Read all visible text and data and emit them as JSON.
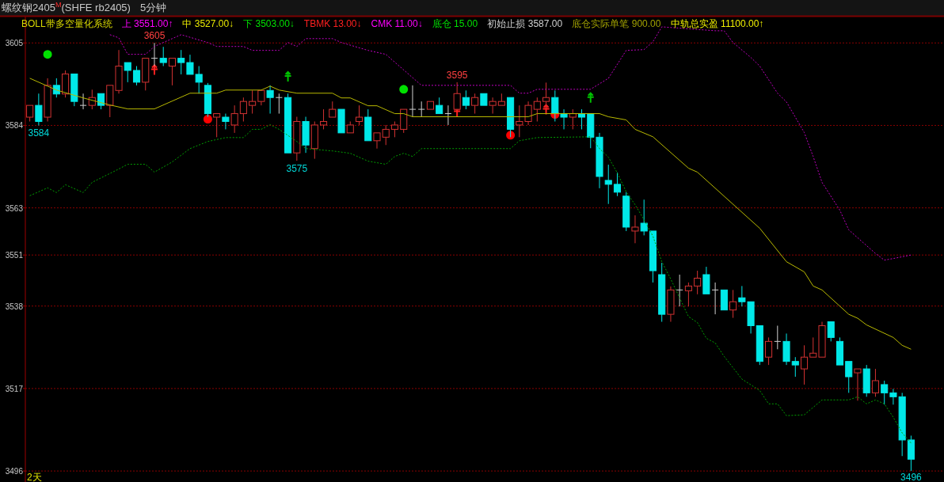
{
  "chart_data": {
    "type": "candlestick",
    "title": "螺纹钢2405$^{M}$(SHFE rb2405)",
    "subtitle": "5分钟",
    "xlabel": "2天",
    "categories": [
      null,
      null,
      null,
      null,
      null,
      null,
      null,
      null,
      null,
      null,
      null,
      null,
      null,
      null,
      null,
      null,
      null,
      null,
      null,
      null,
      null,
      null,
      null,
      null,
      null,
      null,
      null,
      null,
      null,
      null,
      null,
      null,
      null,
      null,
      null,
      null,
      null,
      null,
      null,
      null,
      null,
      null,
      null,
      null,
      null,
      null,
      null,
      null,
      null,
      null,
      null,
      null,
      null,
      null,
      null,
      null,
      null,
      null,
      null,
      null,
      null,
      null,
      null,
      null,
      null,
      null,
      null,
      null,
      null,
      null,
      null,
      null,
      null,
      null,
      null,
      null,
      null,
      null,
      null,
      null,
      null,
      null,
      null,
      null,
      null,
      null,
      null,
      null,
      null,
      null,
      null,
      null,
      null,
      null,
      null,
      null,
      null,
      null,
      null,
      null
    ],
    "ohlc": [
      [
        3586.1,
        3589.1,
        3585.0,
        3589.1
      ],
      [
        3589.1,
        3592.1,
        3584,
        3585.0
      ],
      [
        3586.1,
        3596.0,
        3585.0,
        3594.2
      ],
      [
        3594.2,
        3596.0,
        3591.1,
        3592.0
      ],
      [
        3592.0,
        3598.0,
        3591.1,
        3597.1
      ],
      [
        3597.1,
        3597.1,
        3588.9,
        3590.1
      ],
      [
        3589.1,
        3592.1,
        3588.1,
        3589.1
      ],
      [
        3589.1,
        3593.1,
        3588.1,
        3591.1
      ],
      [
        3592.1,
        3592.1,
        3588.1,
        3589.1
      ],
      [
        3589.1,
        3594.2,
        3586.1,
        3594.2
      ],
      [
        3592.9,
        3603.2,
        3592.1,
        3599.1
      ],
      [
        3600.0,
        3600.0,
        3595.0,
        3598.0
      ],
      [
        3598.0,
        3599.1,
        3594.2,
        3595.0
      ],
      [
        3595.0,
        3601.1,
        3592.9,
        3601.1
      ],
      [
        3601.1,
        3605,
        3599.1,
        3601.1
      ],
      [
        3601.1,
        3604.0,
        3599.1,
        3600.0
      ],
      [
        3599.1,
        3601.1,
        3594.2,
        3601.1
      ],
      [
        3601.1,
        3603.2,
        3597.0,
        3600.0
      ],
      [
        3600.0,
        3602.0,
        3597.0,
        3597.0
      ],
      [
        3597.0,
        3599.1,
        3592.1,
        3595.0
      ],
      [
        3594.2,
        3594.8,
        3586.2,
        3587.0
      ],
      [
        3586.1,
        3587.0,
        3581.0,
        3587.0
      ],
      [
        3586.1,
        3587.0,
        3583.0,
        3585.0
      ],
      [
        3584.1,
        3589.1,
        3582.1,
        3587.0
      ],
      [
        3587.0,
        3591.1,
        3585.0,
        3590.1
      ],
      [
        3589.1,
        3592.9,
        3587.0,
        3590.1
      ],
      [
        3590.1,
        3592.9,
        3589.1,
        3592.9
      ],
      [
        3592.9,
        3594.2,
        3587.0,
        3591.1
      ],
      [
        3591.1,
        3592.1,
        3587.0,
        3591.1
      ],
      [
        3591.1,
        3592.1,
        3577.0,
        3577.0
      ],
      [
        3577.0,
        3586.2,
        3575,
        3585.0
      ],
      [
        3585.0,
        3586.2,
        3577.0,
        3579.0
      ],
      [
        3578.1,
        3585.0,
        3575.5,
        3584.1
      ],
      [
        3584.1,
        3588.1,
        3583.0,
        3585.0
      ],
      [
        3586.1,
        3590.1,
        3586.1,
        3588.1
      ],
      [
        3588.1,
        3588.1,
        3582.1,
        3582.1
      ],
      [
        3582.1,
        3585.0,
        3582.1,
        3584.1
      ],
      [
        3585.0,
        3589.1,
        3584.1,
        3586.1
      ],
      [
        3586.1,
        3588.1,
        3580.1,
        3580.1
      ],
      [
        3580.1,
        3582.1,
        3578.1,
        3582.1
      ],
      [
        3581.0,
        3584.1,
        3579.0,
        3583.0
      ],
      [
        3583.0,
        3585.0,
        3581.0,
        3584.1
      ],
      [
        3583.0,
        3588.1,
        3582.1,
        3588.1
      ],
      [
        3588.1,
        3594.2,
        3586.1,
        3588.1
      ],
      [
        3588.1,
        3590.1,
        3586.1,
        3588.1
      ],
      [
        3588.1,
        3590.1,
        3588.1,
        3590.1
      ],
      [
        3589.1,
        3591.1,
        3587.0,
        3587.0
      ],
      [
        3587.0,
        3589.1,
        3584.1,
        3587.0
      ],
      [
        3588.1,
        3595,
        3588.1,
        3592.1
      ],
      [
        3591.1,
        3592.9,
        3588.1,
        3589.1
      ],
      [
        3589.1,
        3592.1,
        3587.0,
        3591.1
      ],
      [
        3592.1,
        3592.1,
        3589.1,
        3589.1
      ],
      [
        3589.1,
        3591.1,
        3587.0,
        3590.1
      ],
      [
        3589.1,
        3592.1,
        3589.1,
        3590.1
      ],
      [
        3591.1,
        3591.1,
        3581.0,
        3583.0
      ],
      [
        3584.1,
        3589.1,
        3581.0,
        3585.0
      ],
      [
        3585.0,
        3590.1,
        3584.1,
        3589.1
      ],
      [
        3588.1,
        3591.1,
        3585.0,
        3590.1
      ],
      [
        3590.1,
        3594.9,
        3588.1,
        3591.1
      ],
      [
        3591.1,
        3592.9,
        3585.0,
        3587.0
      ],
      [
        3587.0,
        3588.1,
        3583.0,
        3586.1
      ],
      [
        3586.1,
        3588.1,
        3583.0,
        3587.0
      ],
      [
        3587.0,
        3588.1,
        3583.0,
        3586.1
      ],
      [
        3587.0,
        3587.0,
        3578.2,
        3581.0
      ],
      [
        3581.0,
        3582.1,
        3568.0,
        3571.0
      ],
      [
        3570.0,
        3574.0,
        3564.0,
        3569.0
      ],
      [
        3569.0,
        3572.0,
        3566.0,
        3567.0
      ],
      [
        3566.0,
        3567.0,
        3557.1,
        3558.1
      ],
      [
        3557.1,
        3561.1,
        3554.0,
        3558.1
      ],
      [
        3559.1,
        3565.1,
        3556.0,
        3557.1
      ],
      [
        3557.1,
        3557.1,
        3544.0,
        3547.0
      ],
      [
        3546.0,
        3549.0,
        3534.0,
        3535.9
      ],
      [
        3535.9,
        3543.0,
        3534.0,
        3542.1
      ],
      [
        3542.1,
        3546.0,
        3537.9,
        3542.1
      ],
      [
        3541.9,
        3544.0,
        3537.9,
        3543.1
      ],
      [
        3543.1,
        3547.0,
        3541.0,
        3545.1
      ],
      [
        3546.0,
        3548.0,
        3541.1,
        3541.1
      ],
      [
        3542.1,
        3544.0,
        3535.9,
        3542.1
      ],
      [
        3542.1,
        3542.1,
        3537.0,
        3537.0
      ],
      [
        3537.0,
        3542.1,
        3535.0,
        3539.1
      ],
      [
        3540.1,
        3543.1,
        3537.9,
        3539.1
      ],
      [
        3539.1,
        3539.1,
        3531.0,
        3533.0
      ],
      [
        3533.0,
        3533.0,
        3523.0,
        3523.9
      ],
      [
        3525.0,
        3530.0,
        3523.0,
        3529.0
      ],
      [
        3529.0,
        3533.0,
        3527.0,
        3529.0
      ],
      [
        3529.0,
        3531.0,
        3523.0,
        3523.9
      ],
      [
        3523.9,
        3525.0,
        3520.0,
        3523.0
      ],
      [
        3522.0,
        3528.0,
        3518.0,
        3525.0
      ],
      [
        3525.0,
        3530.0,
        3525.0,
        3526.0
      ],
      [
        3525.0,
        3534.0,
        3525.0,
        3533.0
      ],
      [
        3534.0,
        3534.0,
        3529.0,
        3530.0
      ],
      [
        3529.0,
        3530.0,
        3523.0,
        3523.0
      ],
      [
        3523.9,
        3523.9,
        3515.9,
        3520.0
      ],
      [
        3521.0,
        3522.0,
        3513.9,
        3522.0
      ],
      [
        3522.0,
        3523.0,
        3514.9,
        3515.9
      ],
      [
        3515.9,
        3522.0,
        3514.9,
        3519.0
      ],
      [
        3518.0,
        3519.0,
        3512.9,
        3515.9
      ],
      [
        3515.9,
        3516.9,
        3512.9,
        3514.9
      ],
      [
        3514.9,
        3515.9,
        3499.8,
        3503.9
      ],
      [
        3503.9,
        3505.0,
        3496,
        3499.0
      ]
    ],
    "series": [
      {
        "type": "line",
        "color": "#b8b800",
        "line_style": "solid",
        "values": [
          3596.0,
          null,
          null,
          3593.0,
          null,
          null,
          3591.0,
          null,
          null,
          3589.2,
          null,
          3588.2,
          null,
          null,
          3588.2,
          null,
          null,
          null,
          3592.2,
          null,
          null,
          3592.2,
          3593.0,
          null,
          null,
          null,
          3593.0,
          3594.0,
          3593.0,
          null,
          3592.2,
          null,
          null,
          null,
          3592.2,
          3591.0,
          3591.0,
          null,
          3589.0,
          3589.0,
          null,
          3587.0,
          3587.0,
          3586.2,
          null,
          null,
          null,
          null,
          null,
          null,
          null,
          null,
          null,
          null,
          null,
          null,
          3586.2,
          3587.0,
          null,
          null,
          null,
          null,
          null,
          null,
          3587.0,
          3586.2,
          null,
          3585.4,
          3583.0,
          null,
          3581.1,
          null,
          null,
          null,
          3573.1,
          3572.1,
          null,
          null,
          null,
          null,
          null,
          null,
          3557.8,
          null,
          null,
          3549.3,
          null,
          3546.7,
          3543.1,
          3542.1,
          null,
          null,
          3535.9,
          3534.9,
          3533.2,
          null,
          null,
          3530.0,
          3528.0,
          3527.0
        ]
      },
      {
        "type": "line",
        "color": "#c000c0",
        "line_style": "dotted",
        "values": [
          null,
          null,
          null,
          null,
          null,
          null,
          null,
          null,
          null,
          3607.1,
          3606.3,
          3602.1,
          null,
          3602.1,
          3604.1,
          null,
          null,
          3607.1,
          null,
          null,
          3605.1,
          3604.1,
          null,
          null,
          3604.1,
          3603.1,
          null,
          null,
          3603.1,
          3605.1,
          3604.1,
          3606.1,
          null,
          null,
          3606.1,
          3605.1,
          null,
          null,
          3603.1,
          null,
          3602.1,
          3600.1,
          null,
          null,
          3594.2,
          null,
          null,
          null,
          null,
          null,
          null,
          null,
          null,
          null,
          3594.2,
          3592.2,
          3592.2,
          3593.2,
          null,
          null,
          null,
          null,
          null,
          3593.2,
          null,
          3596.0,
          null,
          3603.1,
          null,
          3603.3,
          3605.3,
          3609.1,
          null,
          null,
          null,
          null,
          null,
          3608.1,
          3608.1,
          3605.1,
          null,
          3601.3,
          3599.1,
          null,
          3592.2,
          3590.0,
          null,
          3582.2,
          3576.1,
          3569.5,
          null,
          3562.4,
          3557.4,
          null,
          3553.4,
          3551.4,
          3549.7,
          3550.1,
          null,
          3551.0
        ]
      },
      {
        "type": "line",
        "color": "#00a000",
        "line_style": "dotted",
        "values": [
          3566.1,
          null,
          3568.1,
          3566.9,
          3568.9,
          null,
          3566.9,
          3569.5,
          null,
          null,
          3572.9,
          3574.1,
          null,
          3574.1,
          3572.1,
          null,
          3574.7,
          null,
          3578.1,
          null,
          3579.9,
          null,
          3580.9,
          null,
          3580.9,
          3583.0,
          3583.0,
          3584.2,
          3583.0,
          null,
          3579.9,
          3578.1,
          null,
          null,
          3577.5,
          null,
          3576.9,
          null,
          3574.9,
          null,
          3574.1,
          3576.1,
          3576.9,
          3576.1,
          3578.1,
          null,
          null,
          null,
          null,
          null,
          null,
          null,
          null,
          null,
          3578.1,
          3580.1,
          null,
          3580.9,
          null,
          null,
          null,
          null,
          null,
          3581.1,
          3578.1,
          3575.9,
          3571.9,
          3567.1,
          3563.8,
          3560.0,
          3555.8,
          3549.3,
          3544.9,
          3540.1,
          3535.3,
          3533.8,
          3529.8,
          3528.6,
          3525.2,
          null,
          3519.4,
          null,
          3516.5,
          3513.1,
          3513.1,
          3510.1,
          null,
          3510.3,
          null,
          3514.1,
          null,
          null,
          3514.1,
          3514.9,
          3513.1,
          3514.1,
          3513.1,
          3509.7,
          3505.7,
          3503.1
        ]
      },
      {
        "type": "scatter",
        "color": "#00e000",
        "marker": "circle",
        "values": [
          null,
          null,
          3602.1,
          null,
          null,
          null,
          null,
          null,
          null,
          null,
          null,
          null,
          null,
          null,
          null,
          null,
          null,
          null,
          null,
          null,
          null,
          null,
          null,
          null,
          null,
          null,
          null,
          null,
          null,
          null,
          null,
          null,
          null,
          null,
          null,
          null,
          null,
          null,
          null,
          null,
          null,
          null,
          3593.2,
          null,
          null,
          null,
          null,
          null,
          null,
          null,
          null,
          null,
          null,
          null,
          null,
          null,
          null,
          null,
          null,
          null,
          null,
          null,
          null,
          null,
          null,
          null,
          null,
          null,
          null,
          null,
          null,
          null,
          null,
          null,
          null,
          null,
          null,
          null,
          null,
          null,
          null,
          null,
          null,
          null,
          null,
          null,
          null,
          null,
          null,
          null,
          null,
          null,
          null,
          null,
          null,
          null,
          null,
          null,
          null,
          null
        ]
      },
      {
        "type": "scatter",
        "color": "#ff0000",
        "marker": "circle",
        "values": [
          null,
          null,
          null,
          null,
          null,
          null,
          null,
          null,
          null,
          null,
          null,
          null,
          null,
          null,
          null,
          null,
          null,
          null,
          null,
          null,
          3585.6,
          null,
          null,
          null,
          null,
          null,
          null,
          null,
          null,
          null,
          null,
          null,
          null,
          null,
          null,
          null,
          null,
          null,
          null,
          null,
          null,
          null,
          null,
          null,
          null,
          null,
          null,
          null,
          null,
          null,
          null,
          null,
          null,
          null,
          3581.5,
          null,
          null,
          null,
          null,
          3586.8,
          null,
          null,
          null,
          null,
          null,
          null,
          null,
          null,
          null,
          null,
          null,
          null,
          null,
          null,
          null,
          null,
          null,
          null,
          null,
          null,
          null,
          null,
          null,
          null,
          null,
          null,
          null,
          null,
          null,
          null,
          null,
          null,
          null,
          null,
          null,
          null,
          null,
          null,
          null,
          null
        ]
      },
      {
        "type": "scatter",
        "color": "#ff2020",
        "marker": "cross",
        "values": [
          null,
          null,
          null,
          null,
          null,
          null,
          null,
          null,
          null,
          null,
          null,
          null,
          null,
          null,
          3598.1,
          null,
          null,
          null,
          null,
          null,
          null,
          null,
          null,
          null,
          null,
          null,
          null,
          null,
          null,
          null,
          null,
          null,
          null,
          null,
          null,
          null,
          null,
          null,
          null,
          null,
          null,
          null,
          null,
          null,
          null,
          null,
          null,
          null,
          3587.4,
          null,
          null,
          null,
          null,
          null,
          null,
          null,
          null,
          null,
          3588.0,
          null,
          null,
          null,
          null,
          null,
          null,
          null,
          null,
          null,
          null,
          null,
          null,
          null,
          null,
          null,
          null,
          null,
          null,
          null,
          null,
          null,
          null,
          null,
          null,
          null,
          null,
          null,
          null,
          null,
          null,
          null,
          null,
          null,
          null,
          null,
          null,
          null,
          null,
          null,
          null,
          null
        ]
      },
      {
        "type": "scatter",
        "color": "#00c000",
        "marker": "cross",
        "values": [
          null,
          null,
          null,
          null,
          null,
          null,
          null,
          null,
          null,
          null,
          null,
          null,
          null,
          null,
          null,
          null,
          null,
          null,
          null,
          null,
          null,
          null,
          null,
          null,
          null,
          null,
          null,
          null,
          null,
          3596.4,
          null,
          null,
          null,
          null,
          null,
          null,
          null,
          null,
          null,
          null,
          null,
          null,
          null,
          null,
          null,
          null,
          null,
          null,
          null,
          null,
          null,
          null,
          null,
          null,
          null,
          null,
          null,
          null,
          null,
          null,
          null,
          null,
          null,
          3591.0,
          null,
          null,
          null,
          null,
          null,
          null,
          null,
          null,
          null,
          null,
          null,
          null,
          null,
          null,
          null,
          null,
          null,
          null,
          null,
          null,
          null,
          null,
          null,
          null,
          null,
          null,
          null,
          null,
          null,
          null,
          null,
          null,
          null,
          null,
          null,
          null
        ]
      }
    ],
    "annotations": [
      "BOLL带多空量化系统",
      "上 3551.00↑",
      "中 3527.00↓",
      "下 3503.00↓",
      "TBMK 13.00↓",
      "CMK 11.00↓",
      "底仓 15.00",
      "初始止损 3587.00",
      "底仓实际单笔 900.00",
      "中轨总实盈 11100.00↑",
      {
        "text": "3605",
        "y": 3605
      },
      {
        "text": "3595",
        "y": 3595
      },
      {
        "text": "3584",
        "y": 3584
      },
      {
        "text": "3575",
        "y": 3575
      },
      {
        "text": "3496",
        "y": 3496
      }
    ],
    "ylim": [
      3493.2,
      3611.7
    ],
    "yticks": [
      3605,
      3584,
      3563,
      3551,
      3538,
      3517,
      3496
    ],
    "grid": "y"
  }
}
